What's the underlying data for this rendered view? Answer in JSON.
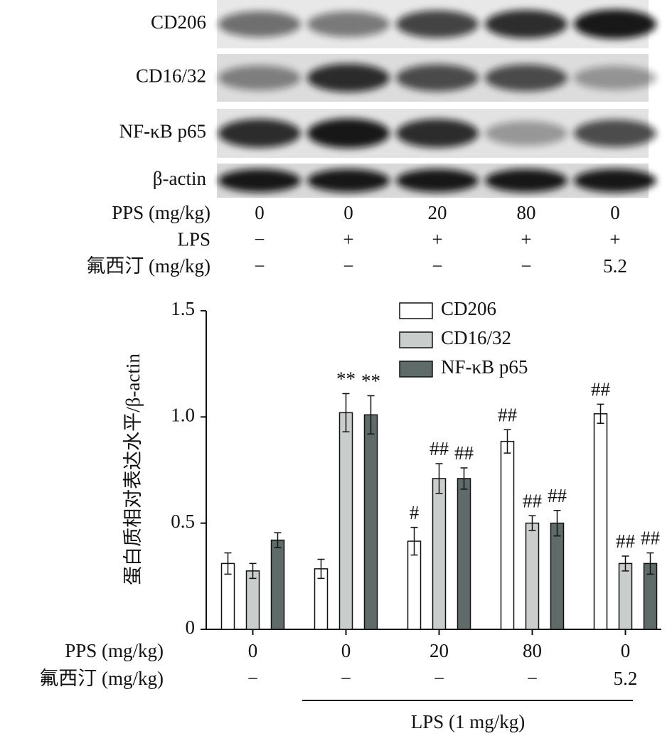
{
  "blot": {
    "rows": [
      "CD206",
      "CD16/32",
      "NF-κB p65",
      "β-actin"
    ],
    "conditions": [
      {
        "label": "PPS (mg/kg)",
        "values": [
          "0",
          "0",
          "20",
          "80",
          "0"
        ]
      },
      {
        "label": "LPS",
        "values": [
          "−",
          "+",
          "+",
          "+",
          "+"
        ]
      },
      {
        "label": "氟西汀 (mg/kg)",
        "values": [
          "−",
          "−",
          "−",
          "−",
          "5.2"
        ]
      }
    ]
  },
  "chart_data": {
    "type": "bar",
    "ylabel": "蛋白质相对表达水平/β-actin",
    "category_label": "PPS (mg/kg)",
    "categories": [
      "0",
      "0",
      "20",
      "80",
      "0"
    ],
    "second_label": "氟西汀 (mg/kg)",
    "second_categories": [
      "−",
      "−",
      "−",
      "−",
      "5.2"
    ],
    "bracket_label": "LPS (1 mg/kg)",
    "ylim": [
      0,
      1.5
    ],
    "yticks": [
      0,
      0.5,
      {
        "value": 1,
        "label": "1.0"
      },
      1.5
    ],
    "series": [
      {
        "name": "CD206",
        "color": "#ffffff",
        "values": [
          0.31,
          0.285,
          0.415,
          0.885,
          1.015
        ],
        "errors": [
          0.05,
          0.045,
          0.065,
          0.055,
          0.045
        ],
        "annotations": [
          null,
          null,
          "#",
          "##",
          "##"
        ]
      },
      {
        "name": "CD16/32",
        "color": "#c9cdcc",
        "values": [
          0.275,
          1.02,
          0.71,
          0.5,
          0.31
        ],
        "errors": [
          0.035,
          0.09,
          0.07,
          0.035,
          0.035
        ],
        "annotations": [
          null,
          "**",
          "##",
          "##",
          "##"
        ]
      },
      {
        "name": "NF-κB p65",
        "color": "#5f6b69",
        "values": [
          0.42,
          1.01,
          0.71,
          0.5,
          0.31
        ],
        "errors": [
          0.035,
          0.09,
          0.05,
          0.06,
          0.05
        ],
        "annotations": [
          null,
          "**",
          "##",
          "##",
          "##"
        ]
      }
    ]
  }
}
